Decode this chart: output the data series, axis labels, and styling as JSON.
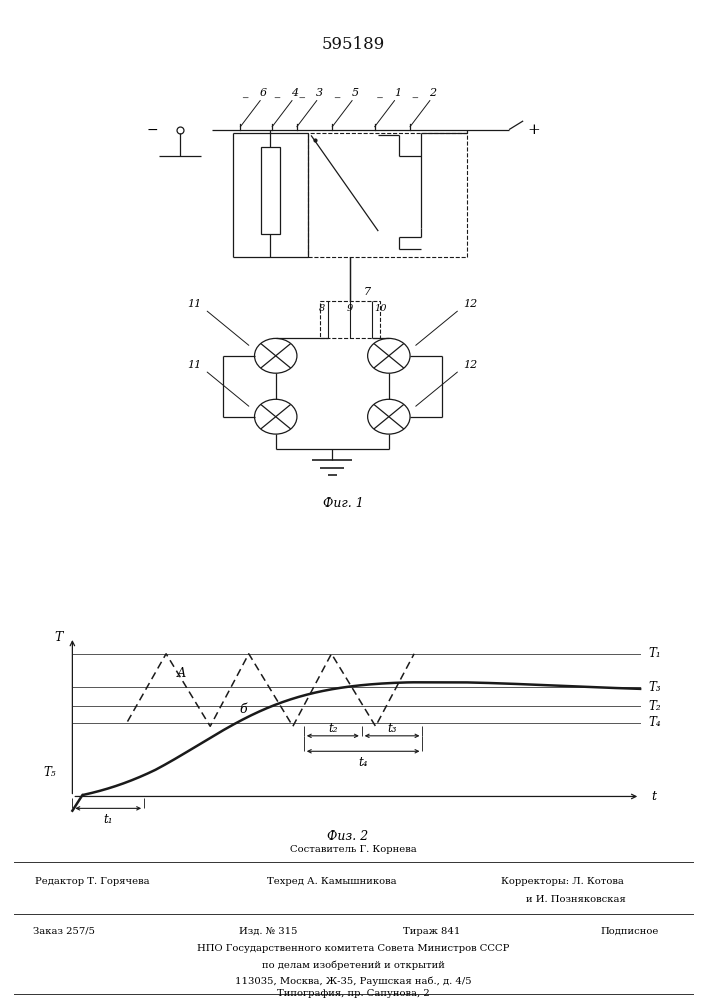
{
  "title_number": "595189",
  "fig1_label": "Фиг. 1",
  "fig2_label": "Физ. 2",
  "background": "#ffffff",
  "line_color": "#1a1a1a",
  "footer_sestavitel": "Составитель Г. Корнева",
  "footer_redaktor": "Редактор Т. Горячева",
  "footer_tehred": "Техред А. Камышникова",
  "footer_korr1": "Корректоры: Л. Котова",
  "footer_korr2": "и И. Позняковская",
  "footer_zakaz": "Заказ 257/5",
  "footer_izd": "Изд. № 315",
  "footer_tirazh": "Тираж 841",
  "footer_podp": "Подписное",
  "footer_npo": "НПО Государственного комитета Совета Министров СССР",
  "footer_dela": "по делам изобретений и открытий",
  "footer_addr": "113035, Москва, Ж-35, Раушская наб., д. 4/5",
  "footer_tip": "Типография, пр. Сапунова, 2"
}
